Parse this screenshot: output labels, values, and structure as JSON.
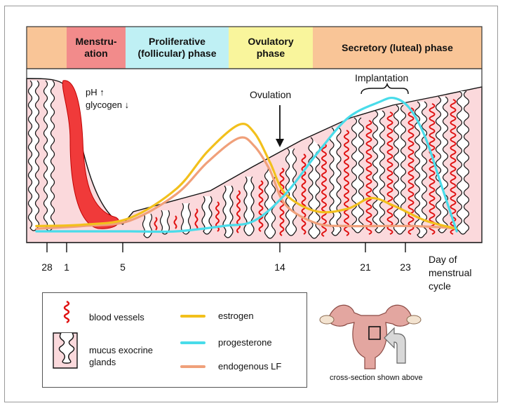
{
  "phases": [
    {
      "label": "",
      "color": "#f9c597"
    },
    {
      "label": "Menstru-\nation",
      "color": "#f28b8b"
    },
    {
      "label": "Proliferative\n(follicular) phase",
      "color": "#bff0f4"
    },
    {
      "label": "Ovulatory\nphase",
      "color": "#f9f59c"
    },
    {
      "label": "Secretory (luteal) phase",
      "color": "#f9c597"
    }
  ],
  "annotations": {
    "ph_glycogen": "pH ↑\nglycogen ↓",
    "ovulation": "Ovulation",
    "implantation": "Implantation"
  },
  "axis": {
    "ticks": [
      "28",
      "1",
      "5",
      "14",
      "21",
      "23"
    ],
    "title": "Day of\nmenstrual\ncycle"
  },
  "chart_data": {
    "type": "line",
    "title": "",
    "xlabel": "Day of menstrual cycle",
    "ylabel": "",
    "x_ticks": [
      28,
      1,
      5,
      14,
      21,
      23
    ],
    "series": [
      {
        "name": "estrogen",
        "color": "#f2c01c",
        "x": [
          -1,
          2,
          5,
          8,
          10,
          12,
          13,
          14,
          15,
          17,
          19,
          20.5,
          22,
          24,
          26
        ],
        "y": [
          0.04,
          0.05,
          0.1,
          0.32,
          0.6,
          0.8,
          0.74,
          0.52,
          0.28,
          0.15,
          0.17,
          0.25,
          0.19,
          0.08,
          0.02
        ]
      },
      {
        "name": "progesterone",
        "color": "#49dcea",
        "x": [
          -1,
          2,
          5,
          8,
          11,
          13,
          15,
          17,
          19,
          21,
          22,
          23,
          24,
          25,
          26
        ],
        "y": [
          0.0,
          0.0,
          0.0,
          0.0,
          0.04,
          0.08,
          0.28,
          0.58,
          0.85,
          0.97,
          1.0,
          0.92,
          0.7,
          0.35,
          0.0
        ]
      },
      {
        "name": "endogenous LF",
        "color": "#f0a07a",
        "x": [
          -1,
          2,
          5,
          8,
          10,
          12,
          13,
          14,
          15,
          17,
          19,
          21,
          23,
          25,
          26
        ],
        "y": [
          0.02,
          0.04,
          0.08,
          0.28,
          0.52,
          0.7,
          0.64,
          0.46,
          0.2,
          0.06,
          0.04,
          0.04,
          0.04,
          0.03,
          0.02
        ]
      }
    ]
  },
  "legend": {
    "blood_vessels": "blood vessels",
    "mucus_glands": "mucus exocrine\nglands",
    "estrogen": "estrogen",
    "progesterone": "progesterone",
    "lf": "endogenous LF"
  },
  "caption": "cross-section shown above"
}
